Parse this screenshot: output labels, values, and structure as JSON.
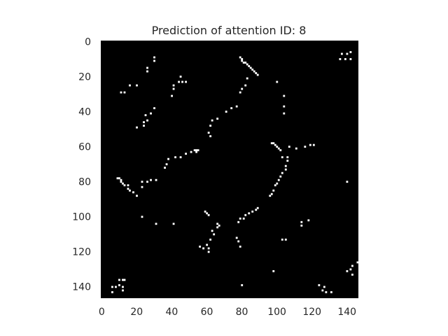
{
  "chart_data": {
    "type": "heatmap",
    "title": "Prediction of attention ID: 8",
    "xlabel": "",
    "ylabel": "",
    "grid": false,
    "colormap": {
      "background": "#000000",
      "foreground": "#ffffff"
    },
    "xlim": [
      0,
      147
    ],
    "ylim": [
      0,
      147
    ],
    "x_ticks": [
      0,
      20,
      40,
      60,
      80,
      100,
      120,
      140
    ],
    "y_ticks": [
      0,
      20,
      40,
      60,
      80,
      100,
      120,
      140
    ],
    "active_pixels": [
      [
        79,
        9
      ],
      [
        80,
        10
      ],
      [
        80,
        11
      ],
      [
        81,
        12
      ],
      [
        82,
        12
      ],
      [
        83,
        13
      ],
      [
        84,
        14
      ],
      [
        85,
        15
      ],
      [
        86,
        16
      ],
      [
        87,
        17
      ],
      [
        88,
        18
      ],
      [
        89,
        19
      ],
      [
        30,
        9
      ],
      [
        30,
        11
      ],
      [
        26,
        15
      ],
      [
        26,
        17
      ],
      [
        20,
        25
      ],
      [
        16,
        25
      ],
      [
        11,
        29
      ],
      [
        13,
        29
      ],
      [
        45,
        20
      ],
      [
        44,
        23
      ],
      [
        46,
        23
      ],
      [
        48,
        23
      ],
      [
        41,
        25
      ],
      [
        41,
        27
      ],
      [
        40,
        31
      ],
      [
        137,
        7
      ],
      [
        140,
        7
      ],
      [
        142,
        6
      ],
      [
        136,
        10
      ],
      [
        139,
        10
      ],
      [
        142,
        10
      ],
      [
        83,
        21
      ],
      [
        82,
        25
      ],
      [
        80,
        27
      ],
      [
        79,
        29
      ],
      [
        100,
        23
      ],
      [
        104,
        31
      ],
      [
        104,
        37
      ],
      [
        104,
        41
      ],
      [
        30,
        38
      ],
      [
        28,
        41
      ],
      [
        25,
        42
      ],
      [
        26,
        45
      ],
      [
        24,
        46
      ],
      [
        24,
        48
      ],
      [
        20,
        49
      ],
      [
        77,
        37
      ],
      [
        74,
        38
      ],
      [
        71,
        40
      ],
      [
        66,
        44
      ],
      [
        63,
        45
      ],
      [
        62,
        48
      ],
      [
        61,
        52
      ],
      [
        62,
        54
      ],
      [
        97,
        58
      ],
      [
        98,
        58
      ],
      [
        99,
        59
      ],
      [
        100,
        60
      ],
      [
        101,
        61
      ],
      [
        102,
        62
      ],
      [
        107,
        60
      ],
      [
        111,
        61
      ],
      [
        116,
        60
      ],
      [
        119,
        59
      ],
      [
        121,
        59
      ],
      [
        53,
        62
      ],
      [
        54,
        62
      ],
      [
        55,
        62
      ],
      [
        54,
        63
      ],
      [
        51,
        63
      ],
      [
        48,
        64
      ],
      [
        45,
        66
      ],
      [
        42,
        66
      ],
      [
        38,
        67
      ],
      [
        37,
        70
      ],
      [
        36,
        72
      ],
      [
        103,
        66
      ],
      [
        106,
        66
      ],
      [
        106,
        68
      ],
      [
        105,
        71
      ],
      [
        105,
        73
      ],
      [
        103,
        75
      ],
      [
        102,
        77
      ],
      [
        101,
        79
      ],
      [
        100,
        81
      ],
      [
        99,
        82
      ],
      [
        97,
        87
      ],
      [
        96,
        88
      ],
      [
        98,
        85
      ],
      [
        9,
        78
      ],
      [
        10,
        78
      ],
      [
        11,
        79
      ],
      [
        11,
        80
      ],
      [
        12,
        81
      ],
      [
        13,
        82
      ],
      [
        15,
        82
      ],
      [
        15,
        84
      ],
      [
        16,
        85
      ],
      [
        23,
        80
      ],
      [
        26,
        80
      ],
      [
        28,
        79
      ],
      [
        31,
        79
      ],
      [
        23,
        83
      ],
      [
        18,
        86
      ],
      [
        20,
        88
      ],
      [
        140,
        80
      ],
      [
        59,
        97
      ],
      [
        60,
        98
      ],
      [
        61,
        99
      ],
      [
        66,
        104
      ],
      [
        67,
        105
      ],
      [
        66,
        106
      ],
      [
        82,
        99
      ],
      [
        84,
        98
      ],
      [
        86,
        97
      ],
      [
        88,
        96
      ],
      [
        89,
        95
      ],
      [
        81,
        101
      ],
      [
        79,
        101
      ],
      [
        78,
        103
      ],
      [
        23,
        100
      ],
      [
        31,
        104
      ],
      [
        41,
        104
      ],
      [
        114,
        103
      ],
      [
        118,
        102
      ],
      [
        114,
        105
      ],
      [
        63,
        108
      ],
      [
        64,
        110
      ],
      [
        62,
        113
      ],
      [
        60,
        116
      ],
      [
        58,
        118
      ],
      [
        61,
        120
      ],
      [
        61,
        118
      ],
      [
        56,
        117
      ],
      [
        77,
        112
      ],
      [
        78,
        114
      ],
      [
        79,
        117
      ],
      [
        103,
        113
      ],
      [
        105,
        113
      ],
      [
        146,
        126
      ],
      [
        143,
        128
      ],
      [
        142,
        130
      ],
      [
        140,
        131
      ],
      [
        143,
        133
      ],
      [
        98,
        131
      ],
      [
        10,
        136
      ],
      [
        12,
        136
      ],
      [
        13,
        136
      ],
      [
        10,
        139
      ],
      [
        12,
        140
      ],
      [
        6,
        140
      ],
      [
        8,
        140
      ],
      [
        12,
        142
      ],
      [
        6,
        143
      ],
      [
        124,
        139
      ],
      [
        126,
        142
      ],
      [
        127,
        140
      ],
      [
        128,
        143
      ],
      [
        131,
        143
      ],
      [
        80,
        139
      ]
    ]
  }
}
